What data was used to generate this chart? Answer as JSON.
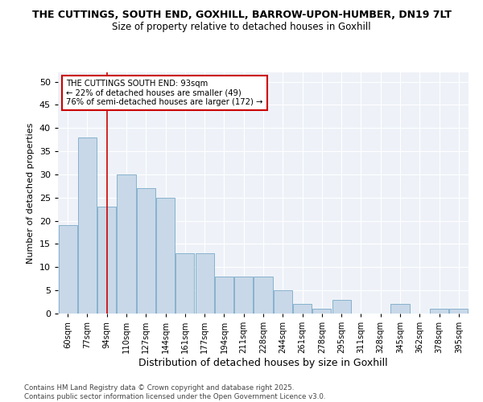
{
  "title1": "THE CUTTINGS, SOUTH END, GOXHILL, BARROW-UPON-HUMBER, DN19 7LT",
  "title2": "Size of property relative to detached houses in Goxhill",
  "xlabel": "Distribution of detached houses by size in Goxhill",
  "ylabel": "Number of detached properties",
  "categories": [
    "60sqm",
    "77sqm",
    "94sqm",
    "110sqm",
    "127sqm",
    "144sqm",
    "161sqm",
    "177sqm",
    "194sqm",
    "211sqm",
    "228sqm",
    "244sqm",
    "261sqm",
    "278sqm",
    "295sqm",
    "311sqm",
    "328sqm",
    "345sqm",
    "362sqm",
    "378sqm",
    "395sqm"
  ],
  "values": [
    19,
    38,
    23,
    30,
    27,
    25,
    13,
    13,
    8,
    8,
    8,
    5,
    2,
    1,
    3,
    0,
    0,
    2,
    0,
    1,
    1
  ],
  "bar_color": "#c8d8e8",
  "bar_edge_color": "#7aaac8",
  "annotation_text_line1": "THE CUTTINGS SOUTH END: 93sqm",
  "annotation_text_line2": "← 22% of detached houses are smaller (49)",
  "annotation_text_line3": "76% of semi-detached houses are larger (172) →",
  "annotation_box_color": "#ffffff",
  "annotation_box_edge": "#cc0000",
  "vline_color": "#cc0000",
  "vline_x": 2,
  "ylim": [
    0,
    52
  ],
  "yticks": [
    0,
    5,
    10,
    15,
    20,
    25,
    30,
    35,
    40,
    45,
    50
  ],
  "bg_color": "#eef2f8",
  "fig_color": "#ffffff",
  "footer": "Contains HM Land Registry data © Crown copyright and database right 2025.\nContains public sector information licensed under the Open Government Licence v3.0."
}
